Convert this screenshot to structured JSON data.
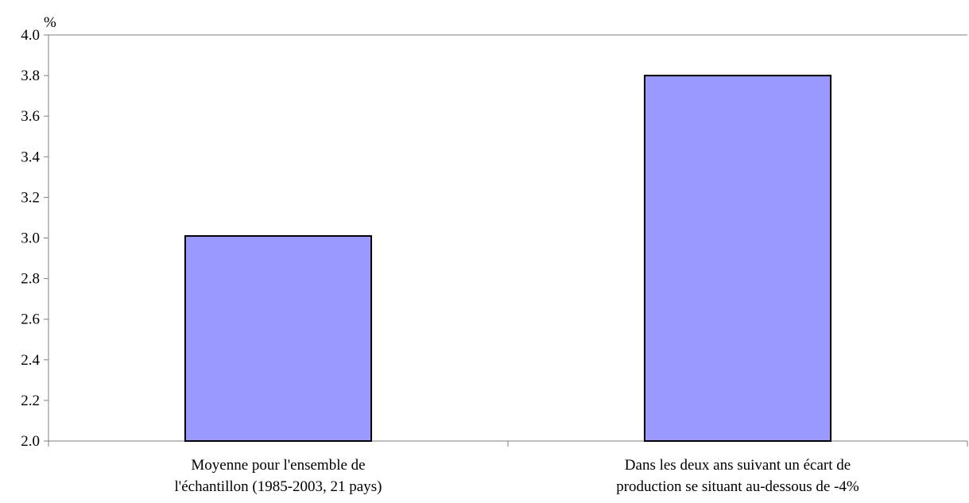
{
  "chart_data": {
    "type": "bar",
    "y_unit": "%",
    "categories": [
      [
        "Moyenne pour l'ensemble de",
        "l'échantillon (1985-2003, 21 pays)"
      ],
      [
        "Dans les deux ans suivant un écart de",
        "production se situant au-dessous de -4%"
      ]
    ],
    "values": [
      3.01,
      3.8
    ],
    "ylim": [
      2.0,
      4.0
    ],
    "yticks": [
      "2.0",
      "2.2",
      "2.4",
      "2.6",
      "2.8",
      "3.0",
      "3.2",
      "3.4",
      "3.6",
      "3.8",
      "4.0"
    ],
    "grid": false,
    "bar_color": "#9999ff",
    "bar_edge_color": "#000000",
    "axis_color": "#808080",
    "title": "",
    "xlabel": "",
    "ylabel": ""
  }
}
